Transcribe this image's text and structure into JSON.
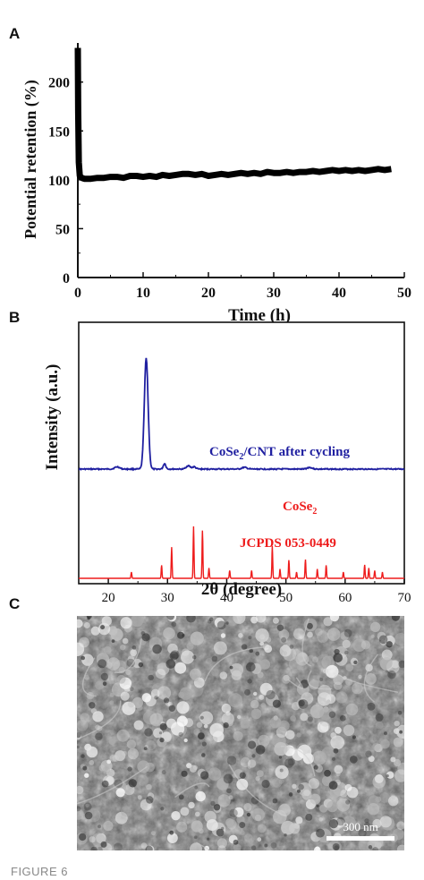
{
  "figure": {
    "caption_label": "FIGURE 6",
    "panels": {
      "a": "A",
      "b": "B",
      "c": "C"
    }
  },
  "chart_data": [
    {
      "id": "A",
      "type": "line",
      "xlabel": "Time (h)",
      "ylabel": "Potential retention (%)",
      "xlim": [
        0,
        50
      ],
      "ylim": [
        0,
        240
      ],
      "xticks": [
        0,
        10,
        20,
        30,
        40,
        50
      ],
      "yticks": [
        0,
        50,
        100,
        150,
        200
      ],
      "grid": false,
      "series": [
        {
          "color": "#000000",
          "x": [
            0,
            0.05,
            0.15,
            0.3,
            0.6,
            1,
            2,
            3,
            4,
            5,
            6,
            7,
            8,
            9,
            10,
            11,
            12,
            13,
            14,
            15,
            16,
            17,
            18,
            19,
            20,
            21,
            22,
            23,
            24,
            25,
            26,
            27,
            28,
            29,
            30,
            31,
            32,
            33,
            34,
            35,
            36,
            37,
            38,
            39,
            40,
            41,
            42,
            43,
            44,
            45,
            46,
            47,
            48
          ],
          "y": [
            235,
            170,
            118,
            104,
            102,
            101,
            101,
            102,
            102,
            103,
            103,
            102,
            104,
            104,
            103,
            104,
            103,
            105,
            104,
            105,
            106,
            106,
            105,
            106,
            104,
            105,
            106,
            105,
            106,
            107,
            106,
            107,
            106,
            108,
            107,
            107,
            108,
            107,
            108,
            108,
            109,
            108,
            109,
            110,
            109,
            110,
            109,
            110,
            109,
            110,
            111,
            110,
            111
          ]
        }
      ]
    },
    {
      "id": "B",
      "type": "line",
      "xlabel": "2θ (degree)",
      "ylabel": "Intensity (a.u.)",
      "xlim": [
        15,
        70
      ],
      "xticks": [
        20,
        30,
        40,
        50,
        60,
        70
      ],
      "grid": false,
      "series": [
        {
          "name": "CoSe2/CNT after cycling",
          "label_main": "CoSe",
          "label_sub": "2",
          "label_rest": "/CNT  after cycling",
          "color": "#1f1fa0",
          "baseline": 0,
          "peaks": [
            [
              26.4,
              1.0,
              0.45
            ],
            [
              21.5,
              0.02,
              0.6
            ],
            [
              29.5,
              0.05,
              0.3
            ],
            [
              33.5,
              0.03,
              0.5
            ],
            [
              34.5,
              0.02,
              0.4
            ],
            [
              43,
              0.015,
              0.6
            ],
            [
              54,
              0.015,
              0.6
            ]
          ]
        },
        {
          "name": "CoSe2 JCPDS 053-0449",
          "label_main": "CoSe",
          "label_sub": "2",
          "label_line2": "JCPDS 053-0449",
          "color": "#ee1c1c",
          "baseline": 0,
          "peaks": [
            [
              23.9,
              0.12,
              0.1
            ],
            [
              29.0,
              0.25,
              0.1
            ],
            [
              30.7,
              0.6,
              0.1
            ],
            [
              34.4,
              1.0,
              0.1
            ],
            [
              35.9,
              0.92,
              0.1
            ],
            [
              37.0,
              0.2,
              0.1
            ],
            [
              40.5,
              0.15,
              0.1
            ],
            [
              44.2,
              0.15,
              0.1
            ],
            [
              47.7,
              0.62,
              0.1
            ],
            [
              49.0,
              0.18,
              0.1
            ],
            [
              50.5,
              0.35,
              0.1
            ],
            [
              51.8,
              0.12,
              0.1
            ],
            [
              53.3,
              0.36,
              0.1
            ],
            [
              55.3,
              0.18,
              0.1
            ],
            [
              56.8,
              0.25,
              0.1
            ],
            [
              59.7,
              0.12,
              0.1
            ],
            [
              63.3,
              0.26,
              0.1
            ],
            [
              64.0,
              0.2,
              0.1
            ],
            [
              65.0,
              0.15,
              0.1
            ],
            [
              66.3,
              0.12,
              0.1
            ]
          ]
        }
      ]
    }
  ],
  "sem": {
    "scale_bar_label": "300 nm"
  }
}
